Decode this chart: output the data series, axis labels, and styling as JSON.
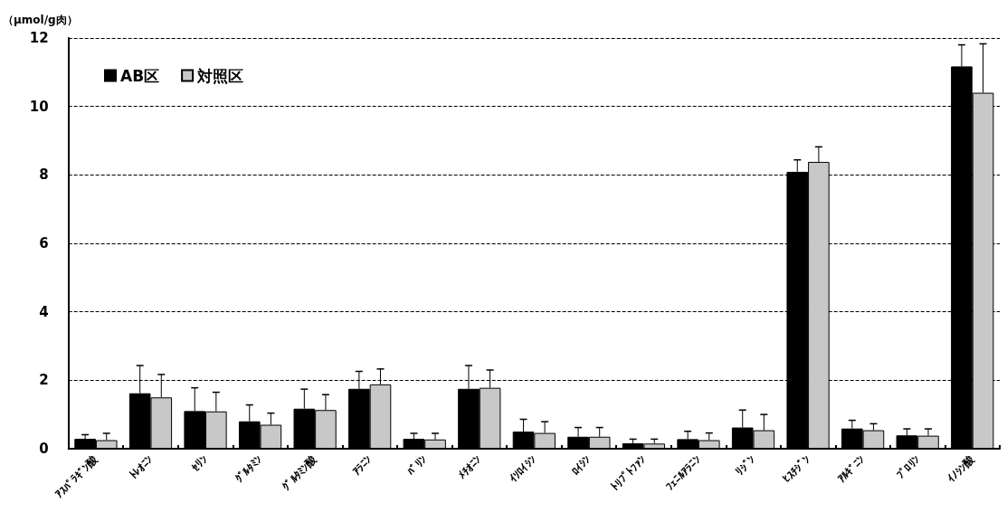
{
  "chart_data": {
    "type": "bar",
    "ylabel": "（μmol/g肉）",
    "categories": [
      "ｱｽﾊﾟﾗｷﾞﾝ酸",
      "ﾄﾚｵﾆﾝ",
      "ｾﾘﾝ",
      "ｸﾞﾙﾀﾐﾝ",
      "ｸﾞﾙﾀﾐﾝ酸",
      "ｱﾗﾆﾝ",
      "ﾊﾞﾘﾝ",
      "ﾒﾁｵﾆﾝ",
      "ｲｿﾛｲｼﾝ",
      "ﾛｲｼﾝ",
      "ﾄﾘﾌﾟﾄﾌｧﾝ",
      "ﾌｪﾆﾙｱﾗﾆﾝ",
      "ﾘｼﾞﾝ",
      "ﾋｽﾁｼﾞﾝ",
      "ｱﾙｷﾞﾆﾝ",
      "ﾌﾟﾛﾘﾝ",
      "ｲﾉｼﾝ酸"
    ],
    "series": [
      {
        "name": "AB区",
        "color": "#000000",
        "values": [
          0.29,
          1.62,
          1.1,
          0.8,
          1.17,
          1.75,
          0.29,
          1.75,
          0.5,
          0.35,
          0.16,
          0.28,
          0.62,
          8.09,
          0.59,
          0.39,
          11.17
        ],
        "errors": [
          [
            0.29,
            0.41
          ],
          [
            1.62,
            2.43
          ],
          [
            1.1,
            1.78
          ],
          [
            0.8,
            1.28
          ],
          [
            1.17,
            1.74
          ],
          [
            1.75,
            2.26
          ],
          [
            0.29,
            0.45
          ],
          [
            1.75,
            2.43
          ],
          [
            0.5,
            0.86
          ],
          [
            0.35,
            0.62
          ],
          [
            0.16,
            0.28
          ],
          [
            0.28,
            0.51
          ],
          [
            0.62,
            1.13
          ],
          [
            8.09,
            8.44
          ],
          [
            0.59,
            0.83
          ],
          [
            0.39,
            0.58
          ],
          [
            11.17,
            11.8
          ]
        ]
      },
      {
        "name": "対照区",
        "color": "#c8c8c8",
        "values": [
          0.25,
          1.5,
          1.09,
          0.7,
          1.13,
          1.88,
          0.27,
          1.78,
          0.46,
          0.35,
          0.15,
          0.25,
          0.54,
          8.38,
          0.54,
          0.38,
          10.4
        ],
        "errors": [
          [
            0.25,
            0.45
          ],
          [
            1.5,
            2.17
          ],
          [
            1.09,
            1.65
          ],
          [
            0.7,
            1.04
          ],
          [
            1.13,
            1.58
          ],
          [
            1.88,
            2.33
          ],
          [
            0.27,
            0.45
          ],
          [
            1.78,
            2.3
          ],
          [
            0.46,
            0.79
          ],
          [
            0.35,
            0.62
          ],
          [
            0.15,
            0.28
          ],
          [
            0.25,
            0.46
          ],
          [
            0.54,
            1.0
          ],
          [
            8.38,
            8.82
          ],
          [
            0.54,
            0.73
          ],
          [
            0.38,
            0.58
          ],
          [
            10.4,
            11.83
          ]
        ]
      }
    ],
    "ylim": [
      0,
      12
    ],
    "yticks": [
      0,
      2,
      4,
      6,
      8,
      10,
      12
    ],
    "grid": "y",
    "line_style": "dashed",
    "legend": "top left"
  }
}
